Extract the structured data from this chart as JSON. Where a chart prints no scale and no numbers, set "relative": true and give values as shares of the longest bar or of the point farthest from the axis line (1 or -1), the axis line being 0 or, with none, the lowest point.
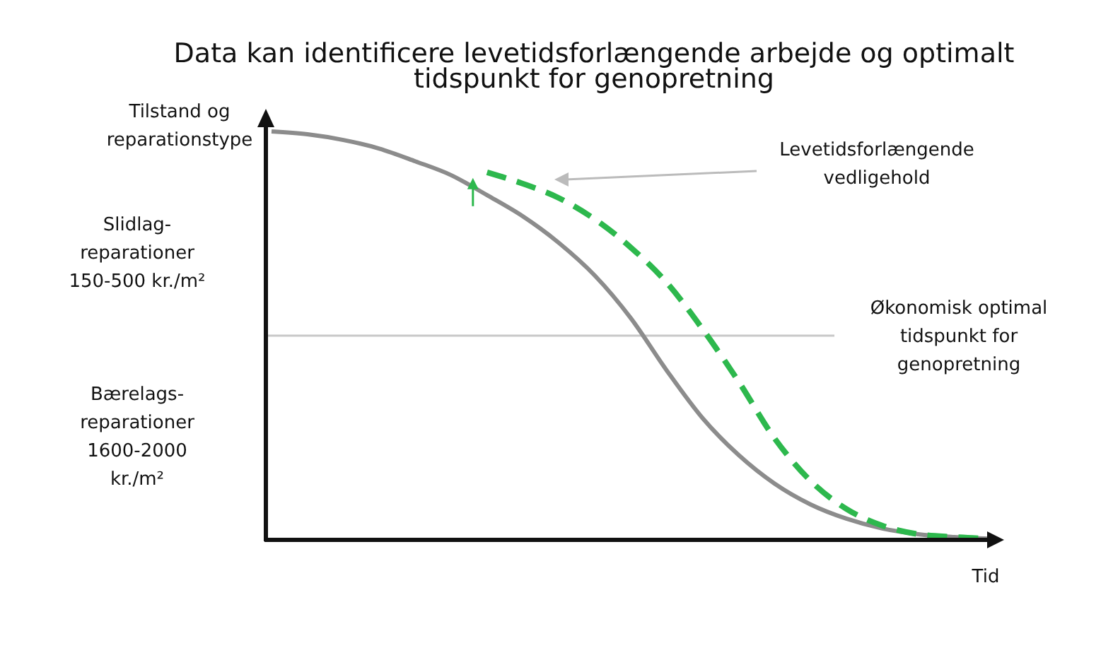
{
  "chart_data": {
    "type": "line",
    "relative": true,
    "title": "Data kan identificere levetidsforlængende arbejde og optimalt\ntidspunkt for genopretning",
    "ylabel": "Tilstand og\nreparationstype",
    "xlabel": "Tid",
    "categories": [
      null,
      null,
      null,
      null,
      null,
      null,
      null,
      null,
      null,
      null,
      null,
      null,
      null,
      null,
      null,
      null,
      null,
      null,
      null,
      null,
      null
    ],
    "series": [
      {
        "color": "#8c8c8c",
        "line_style": "solid",
        "values": [
          1.0,
          0.993,
          0.979,
          0.958,
          0.927,
          0.893,
          0.844,
          0.792,
          0.727,
          0.647,
          0.543,
          0.415,
          0.298,
          0.208,
          0.138,
          0.087,
          0.052,
          0.028,
          0.014,
          0.007,
          0.003
        ]
      },
      {
        "color": "#2db84d",
        "line_style": "dashed",
        "values": [
          null,
          null,
          null,
          null,
          null,
          null,
          0.9,
          0.872,
          0.837,
          0.785,
          0.716,
          0.63,
          0.516,
          0.388,
          0.249,
          0.145,
          0.076,
          0.035,
          0.014,
          0.007,
          0.003
        ]
      }
    ],
    "ref_lines": [
      {
        "axis": "y",
        "value": 0.5,
        "label": "Økonomisk optimal\ntidspunkt for\ngenopretning",
        "color": "#c8c8c8"
      }
    ],
    "annotations": [
      "Levetidsforlængende\nvedligehold",
      "Slidlag-\nreparationer\n150-500 kr./m²",
      "Bærelags-\nreparationer\n1600-2000\nkr./m²"
    ],
    "grid": false
  }
}
